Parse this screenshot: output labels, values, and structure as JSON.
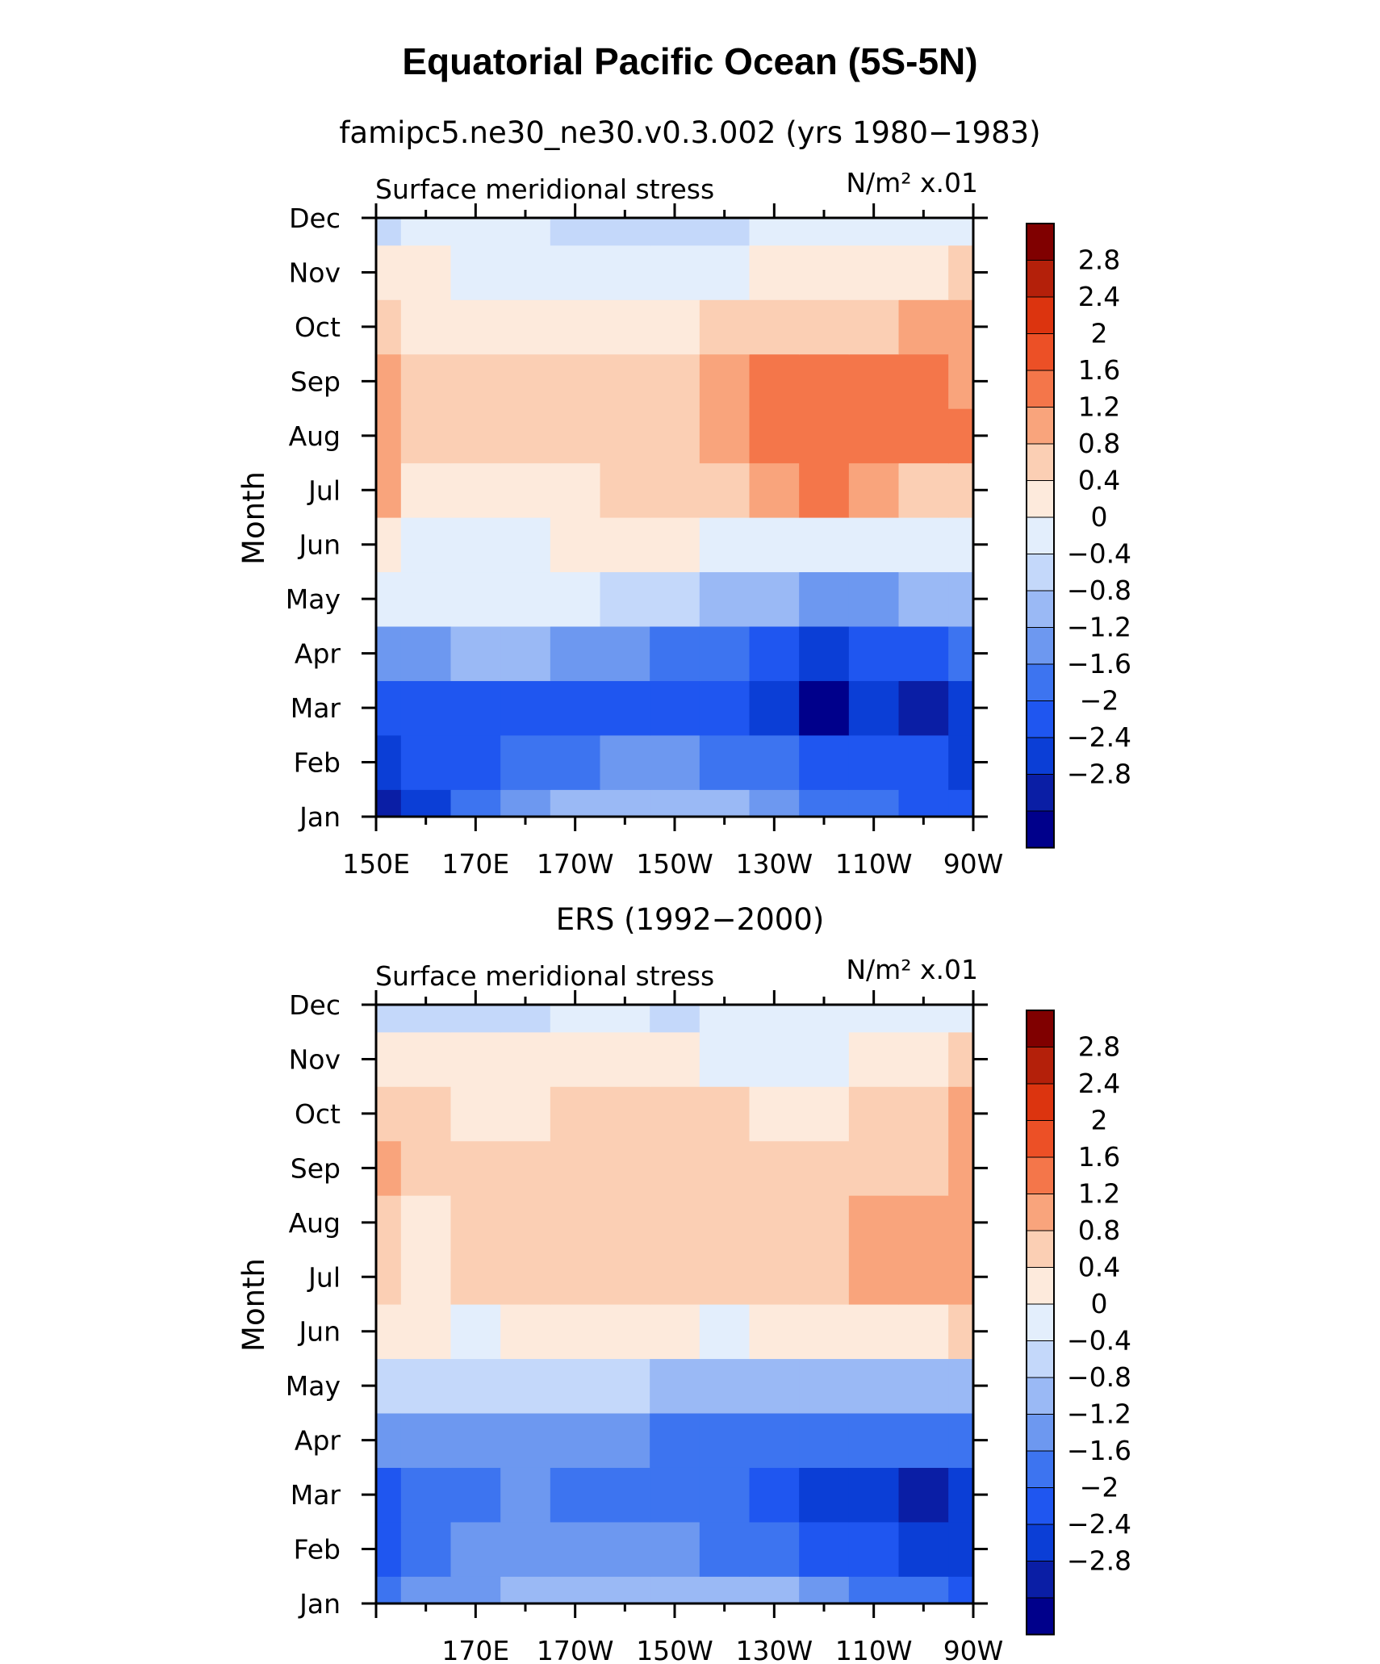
{
  "page": {
    "title": "Equatorial Pacific Ocean (5S-5N)"
  },
  "chart_data": [
    {
      "type": "heatmap",
      "subtitle": "famipc5.ne30_ne30.v0.3.002 (yrs 1980−1983)",
      "variable": "Surface meridional stress",
      "units": "N/m² x.01",
      "xlabel": "",
      "ylabel": "Month",
      "x_ticks": [
        "150E",
        "170E",
        "170W",
        "150W",
        "130W",
        "110W",
        "90W"
      ],
      "y_ticks": [
        "Jan",
        "Feb",
        "Mar",
        "Apr",
        "May",
        "Jun",
        "Jul",
        "Aug",
        "Sep",
        "Oct",
        "Nov",
        "Dec"
      ],
      "x_coords": [
        "150E",
        "160E",
        "170E",
        "180",
        "170W",
        "160W",
        "150W",
        "140W",
        "130W",
        "120W",
        "110W",
        "100W",
        "90W"
      ],
      "values": [
        [
          -2.6,
          -2.2,
          -1.6,
          -1.0,
          -0.7,
          -0.6,
          -0.6,
          -0.8,
          -1.0,
          -1.3,
          -1.5,
          -1.7,
          -1.9
        ],
        [
          -2.4,
          -2.0,
          -1.9,
          -1.6,
          -1.3,
          -1.1,
          -1.1,
          -1.3,
          -1.6,
          -1.8,
          -1.9,
          -2.0,
          -2.1
        ],
        [
          -1.9,
          -1.8,
          -1.8,
          -1.8,
          -1.8,
          -1.9,
          -1.8,
          -1.8,
          -2.3,
          -2.9,
          -2.4,
          -2.6,
          -2.3
        ],
        [
          -1.0,
          -0.9,
          -0.8,
          -0.8,
          -0.9,
          -1.1,
          -1.3,
          -1.6,
          -2.0,
          -2.2,
          -1.9,
          -1.8,
          -1.6
        ],
        [
          0.1,
          0.2,
          0.3,
          0.3,
          0.1,
          -0.2,
          -0.4,
          -0.6,
          -0.8,
          -0.9,
          -0.9,
          -0.8,
          -0.8
        ],
        [
          0.5,
          0.3,
          0.3,
          0.3,
          0.5,
          0.5,
          0.4,
          0.3,
          0.2,
          0.1,
          0.1,
          0.2,
          0.2
        ],
        [
          1.4,
          0.6,
          0.6,
          0.7,
          0.6,
          0.8,
          0.9,
          1.1,
          1.4,
          1.6,
          1.3,
          1.1,
          1.0
        ],
        [
          1.5,
          0.9,
          0.8,
          1.1,
          0.8,
          1.0,
          1.1,
          1.4,
          1.7,
          1.9,
          1.7,
          1.6,
          1.6
        ],
        [
          1.4,
          1.0,
          0.9,
          1.1,
          0.8,
          0.9,
          1.1,
          1.3,
          1.6,
          1.6,
          1.6,
          1.6,
          1.5
        ],
        [
          0.9,
          0.7,
          0.6,
          0.6,
          0.6,
          0.6,
          0.7,
          0.9,
          1.1,
          1.1,
          1.1,
          1.2,
          1.2
        ],
        [
          0.5,
          0.4,
          0.3,
          0.3,
          0.3,
          0.1,
          0.2,
          0.3,
          0.4,
          0.5,
          0.6,
          0.7,
          0.9
        ],
        [
          -0.1,
          0.0,
          0.0,
          0.0,
          -0.1,
          -0.2,
          -0.1,
          -0.2,
          0.0,
          0.1,
          0.1,
          0.1,
          0.0
        ]
      ],
      "colorbar_labels": [
        "2.8",
        "2.4",
        "2",
        "1.6",
        "1.2",
        "0.8",
        "0.4",
        "0",
        "−0.4",
        "−0.8",
        "−1.2",
        "−1.6",
        "−2",
        "−2.4",
        "−2.8"
      ],
      "levels": [
        -2.8,
        -2.4,
        -2.0,
        -1.6,
        -1.2,
        -0.8,
        -0.4,
        0,
        0.4,
        0.8,
        1.2,
        1.6,
        2.0,
        2.4,
        2.8
      ],
      "colors": [
        "#00008b",
        "#0a1ea5",
        "#0b3ed6",
        "#1f56f0",
        "#3d74f0",
        "#6d98f0",
        "#9ab9f5",
        "#c4d8fa",
        "#e3eefc",
        "#fdeadc",
        "#fbcfb4",
        "#f9a47c",
        "#f4764a",
        "#ec5026",
        "#dc340f",
        "#b4200a",
        "#800000"
      ]
    },
    {
      "type": "heatmap",
      "subtitle": "ERS (1992−2000)",
      "variable": "Surface meridional stress",
      "units": "N/m² x.01",
      "xlabel": "",
      "ylabel": "Month",
      "x_ticks": [
        "170E",
        "170W",
        "150W",
        "130W",
        "110W",
        "90W"
      ],
      "y_ticks": [
        "Jan",
        "Feb",
        "Mar",
        "Apr",
        "May",
        "Jun",
        "Jul",
        "Aug",
        "Sep",
        "Oct",
        "Nov",
        "Dec"
      ],
      "x_coords": [
        "150E",
        "160E",
        "170E",
        "180",
        "170W",
        "160W",
        "150W",
        "140W",
        "130W",
        "120W",
        "110W",
        "100W",
        "90W"
      ],
      "values": [
        [
          -1.4,
          -1.2,
          -1.0,
          -0.8,
          -0.7,
          -0.7,
          -0.5,
          -0.6,
          -0.8,
          -1.1,
          -1.4,
          -1.6,
          -1.8
        ],
        [
          -1.8,
          -1.4,
          -1.0,
          -1.1,
          -1.2,
          -1.2,
          -1.2,
          -1.3,
          -1.6,
          -1.8,
          -2.0,
          -2.3,
          -2.2
        ],
        [
          -1.9,
          -1.6,
          -1.3,
          -1.2,
          -1.3,
          -1.4,
          -1.4,
          -1.6,
          -1.9,
          -2.1,
          -2.3,
          -2.5,
          -2.3
        ],
        [
          -0.9,
          -0.9,
          -1.0,
          -1.0,
          -1.1,
          -1.2,
          -1.4,
          -1.5,
          -1.6,
          -1.6,
          -1.6,
          -1.5,
          -1.4
        ],
        [
          -0.2,
          -0.3,
          -0.3,
          -0.3,
          -0.3,
          -0.3,
          -0.5,
          -0.5,
          -0.6,
          -0.6,
          -0.6,
          -0.6,
          -0.5
        ],
        [
          0.6,
          0.4,
          0.3,
          0.5,
          0.5,
          0.5,
          0.4,
          0.3,
          0.4,
          0.4,
          0.4,
          0.6,
          0.9
        ],
        [
          0.8,
          0.7,
          0.8,
          0.9,
          0.9,
          0.9,
          0.9,
          0.9,
          0.9,
          0.8,
          1.2,
          1.3,
          1.4
        ],
        [
          0.9,
          0.7,
          0.8,
          0.9,
          0.9,
          0.9,
          0.9,
          0.9,
          1.0,
          0.9,
          1.2,
          1.3,
          1.3
        ],
        [
          1.2,
          0.9,
          0.8,
          0.9,
          0.9,
          0.9,
          0.9,
          1.0,
          1.0,
          0.8,
          0.9,
          1.0,
          1.3
        ],
        [
          0.8,
          0.8,
          0.6,
          0.6,
          0.8,
          0.8,
          0.8,
          0.8,
          0.7,
          0.5,
          0.8,
          0.9,
          1.3
        ],
        [
          0.5,
          0.5,
          0.4,
          0.4,
          0.4,
          0.4,
          0.4,
          0.3,
          0.3,
          0.2,
          0.6,
          0.7,
          0.9
        ],
        [
          -0.2,
          -0.1,
          -0.3,
          -0.1,
          0.0,
          0.0,
          -0.1,
          0.0,
          0.0,
          0.1,
          0.1,
          0.2,
          0.2
        ]
      ],
      "colorbar_labels": [
        "2.8",
        "2.4",
        "2",
        "1.6",
        "1.2",
        "0.8",
        "0.4",
        "0",
        "−0.4",
        "−0.8",
        "−1.2",
        "−1.6",
        "−2",
        "−2.4",
        "−2.8"
      ],
      "levels": [
        -2.8,
        -2.4,
        -2.0,
        -1.6,
        -1.2,
        -0.8,
        -0.4,
        0,
        0.4,
        0.8,
        1.2,
        1.6,
        2.0,
        2.4,
        2.8
      ],
      "colors": [
        "#00008b",
        "#0a1ea5",
        "#0b3ed6",
        "#1f56f0",
        "#3d74f0",
        "#6d98f0",
        "#9ab9f5",
        "#c4d8fa",
        "#e3eefc",
        "#fdeadc",
        "#fbcfb4",
        "#f9a47c",
        "#f4764a",
        "#ec5026",
        "#dc340f",
        "#b4200a",
        "#800000"
      ]
    }
  ]
}
